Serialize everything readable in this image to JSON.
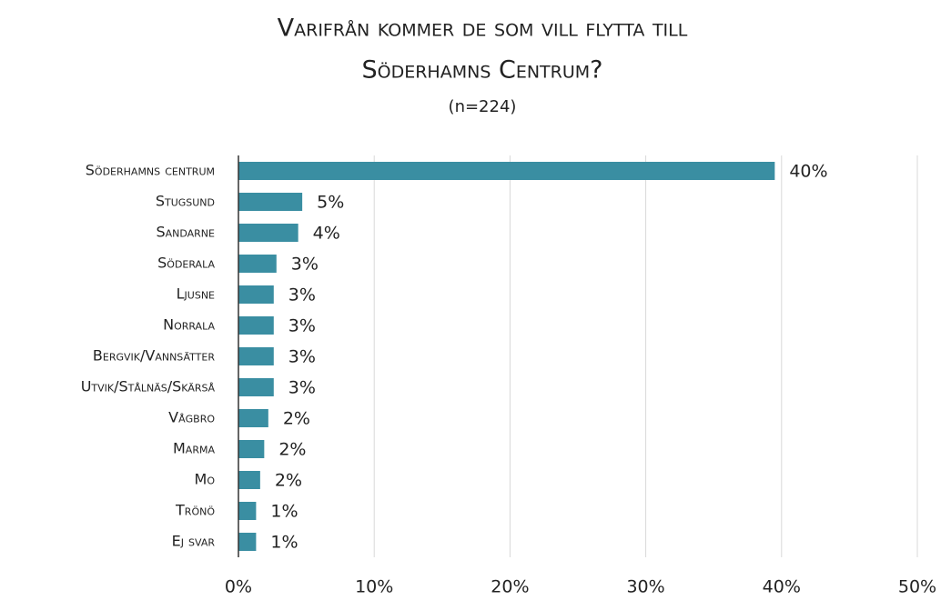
{
  "chart_data": {
    "type": "bar",
    "orientation": "horizontal",
    "title": [
      "Varifrån kommer de som vill flytta till",
      "Söderhamns Centrum?"
    ],
    "subtitle": "(n=224)",
    "categories": [
      "Söderhamns centrum",
      "Stugsund",
      "Sandarne",
      "Söderala",
      "Ljusne",
      "Norrala",
      "Bergvik/Vannsätter",
      "Utvik/Stålnäs/Skärså",
      "Vågbro",
      "Marma",
      "Mo",
      "Trönö",
      "Ej svar"
    ],
    "values": [
      39.5,
      4.7,
      4.4,
      2.8,
      2.6,
      2.6,
      2.6,
      2.6,
      2.2,
      1.9,
      1.6,
      1.3,
      1.3
    ],
    "value_labels": [
      "40%",
      "5%",
      "4%",
      "3%",
      "3%",
      "3%",
      "3%",
      "3%",
      "2%",
      "2%",
      "2%",
      "1%",
      "1%"
    ],
    "color": "#3a8ea2",
    "xlim": [
      0,
      50
    ],
    "xticks": [
      {
        "value": 0,
        "label": "0%"
      },
      {
        "value": 10,
        "label": "10%"
      },
      {
        "value": 20,
        "label": "20%"
      },
      {
        "value": 30,
        "label": "30%"
      },
      {
        "value": 40,
        "label": "40%"
      },
      {
        "value": 50,
        "label": "50%"
      }
    ],
    "grid": true
  }
}
